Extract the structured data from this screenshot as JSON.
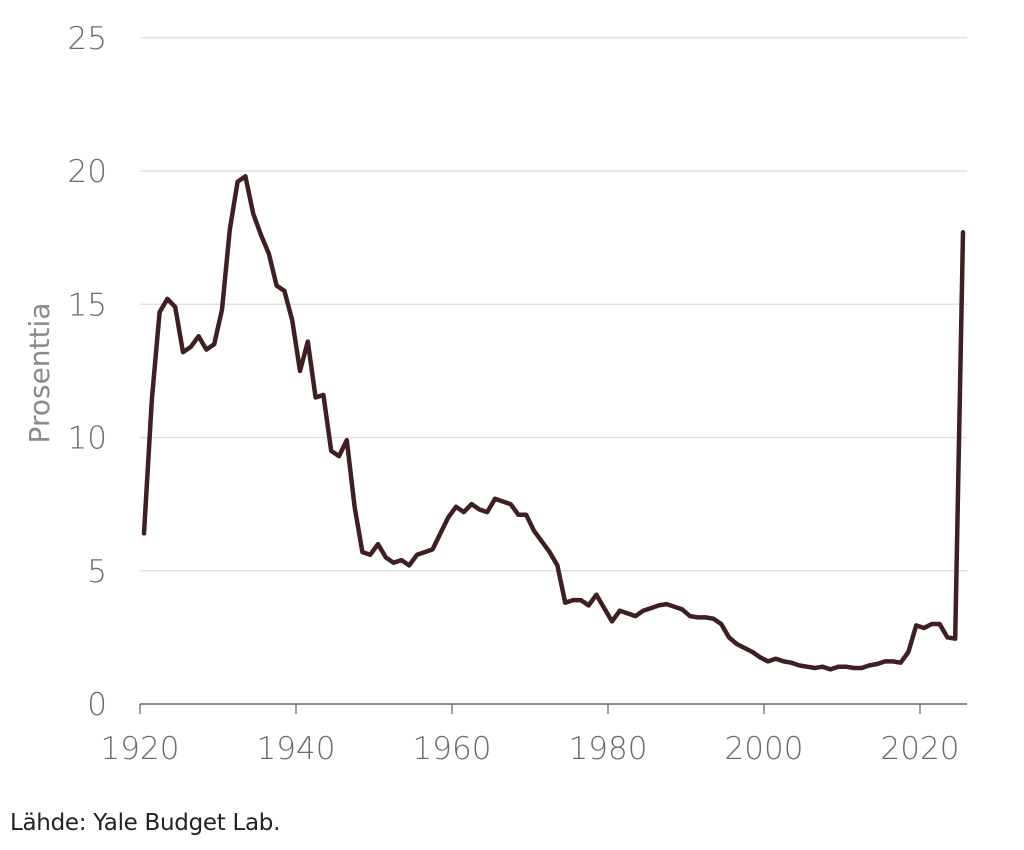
{
  "chart_data": {
    "type": "line",
    "title": "",
    "xlabel": "",
    "ylabel": "Prosenttia",
    "ylim": [
      0,
      25
    ],
    "xlim": [
      1920,
      2025
    ],
    "grid": true,
    "y_ticks": [
      0,
      5,
      10,
      15,
      20,
      25
    ],
    "x_ticks": [
      1920,
      1940,
      1960,
      1980,
      2000,
      2020
    ],
    "series": [
      {
        "name": "",
        "color": "#3f1f22",
        "start_year": 1920,
        "values": [
          6.4,
          11.4,
          14.7,
          15.2,
          14.9,
          13.2,
          13.4,
          13.8,
          13.3,
          13.5,
          14.8,
          17.8,
          19.6,
          19.8,
          18.4,
          17.6,
          16.9,
          15.7,
          15.5,
          14.4,
          12.5,
          13.6,
          11.5,
          11.6,
          9.5,
          9.3,
          9.9,
          7.4,
          5.7,
          5.6,
          6.0,
          5.5,
          5.3,
          5.4,
          5.2,
          5.6,
          5.7,
          5.8,
          6.4,
          7.0,
          7.4,
          7.2,
          7.5,
          7.3,
          7.2,
          7.7,
          7.6,
          7.5,
          7.1,
          7.1,
          6.5,
          6.1,
          5.7,
          5.2,
          3.8,
          3.9,
          3.9,
          3.7,
          4.1,
          3.6,
          3.1,
          3.5,
          3.4,
          3.3,
          3.5,
          3.6,
          3.7,
          3.75,
          3.65,
          3.55,
          3.3,
          3.25,
          3.25,
          3.2,
          3.0,
          2.5,
          2.25,
          2.1,
          1.95,
          1.75,
          1.6,
          1.7,
          1.6,
          1.55,
          1.45,
          1.4,
          1.35,
          1.4,
          1.3,
          1.4,
          1.4,
          1.35,
          1.35,
          1.45,
          1.5,
          1.6,
          1.6,
          1.55,
          1.95,
          2.95,
          2.85,
          3.0,
          3.0,
          2.5,
          2.45,
          17.7
        ]
      }
    ]
  },
  "axis": {
    "y_title": "Prosenttia",
    "y_labels": [
      "0",
      "5",
      "10",
      "15",
      "20",
      "25"
    ],
    "x_labels": [
      "1920",
      "1940",
      "1960",
      "1980",
      "2000",
      "2020"
    ]
  },
  "source": "Lähde: Yale Budget Lab."
}
